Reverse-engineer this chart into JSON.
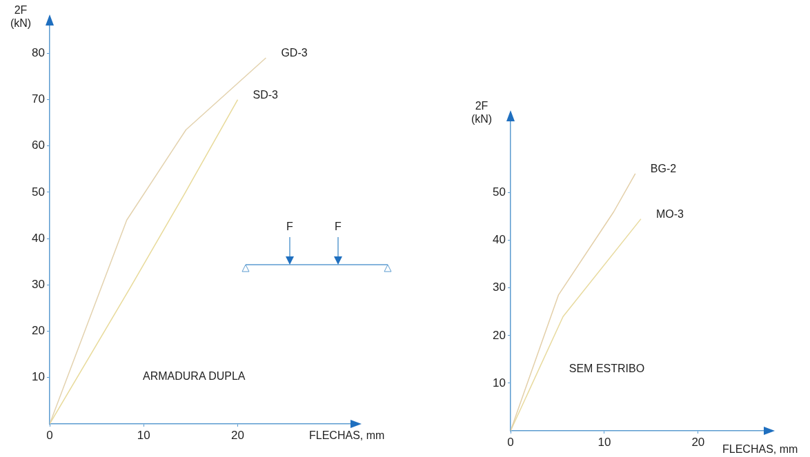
{
  "chart_data": [
    {
      "type": "line",
      "xlabel": "FLECHAS, mm",
      "ylabel": "2F (kN)",
      "annotations": [
        "ARMADURA DUPLA",
        "F",
        "F"
      ],
      "xlim": [
        0,
        32
      ],
      "xticks": [
        0,
        10,
        20
      ],
      "ylim": [
        0,
        86
      ],
      "yticks": [
        10,
        20,
        30,
        40,
        50,
        60,
        70,
        80
      ],
      "marker": "none",
      "line_style": "solid",
      "series": [
        {
          "name": "GD-3",
          "color": "#e3d2ae",
          "x": [
            0,
            8.2,
            14.5,
            23
          ],
          "values": [
            0,
            44,
            63.5,
            79
          ]
        },
        {
          "name": "SD-3",
          "color": "#e8da9a",
          "x": [
            0,
            8.6,
            14.3,
            20
          ],
          "values": [
            0,
            29.5,
            49.5,
            70
          ]
        }
      ]
    },
    {
      "type": "line",
      "xlabel": "FLECHAS, mm",
      "ylabel": "2F (kN)",
      "annotations": [
        "SEM ESTRIBO"
      ],
      "xlim": [
        0,
        27
      ],
      "xticks": [
        0,
        10,
        20
      ],
      "ylim": [
        0,
        65
      ],
      "yticks": [
        10,
        20,
        30,
        40,
        50
      ],
      "marker": "none",
      "line_style": "solid",
      "series": [
        {
          "name": "BG-2",
          "color": "#e3cfa8",
          "x": [
            0,
            5.1,
            11,
            13.3
          ],
          "values": [
            0,
            28.5,
            46,
            54
          ]
        },
        {
          "name": "MO-3",
          "color": "#e8da9e",
          "x": [
            0,
            5.6,
            13.9
          ],
          "values": [
            0,
            24,
            44.5
          ]
        }
      ]
    }
  ]
}
